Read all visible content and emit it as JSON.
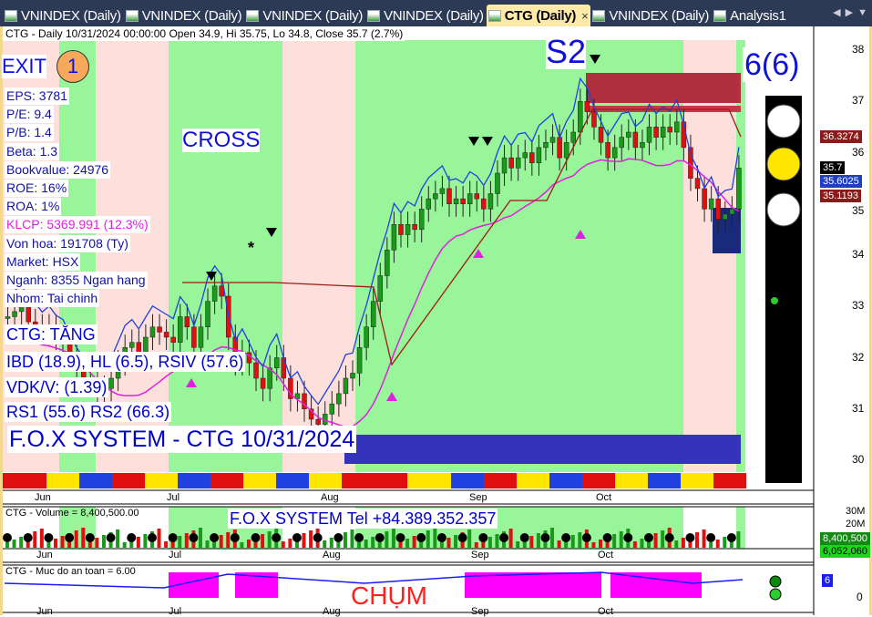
{
  "tabs": [
    {
      "label": "VNINDEX (Daily)",
      "active": false
    },
    {
      "label": "VNINDEX (Daily)",
      "active": false
    },
    {
      "label": "VNINDEX (Daily)",
      "active": false
    },
    {
      "label": "VNINDEX (Daily)",
      "active": false
    },
    {
      "label": "CTG (Daily)",
      "active": true
    },
    {
      "label": "VNINDEX (Daily)",
      "active": false
    },
    {
      "label": "Analysis1",
      "active": false
    }
  ],
  "tab_close": "×",
  "nav": "◀ ▶ ▼",
  "header": "CTG - Daily 10/31/2024 00:00:00 Open 34.9, Hi 35.75, Lo 34.8, Close 35.7 (2.7%)",
  "signal": {
    "exit": "EXIT",
    "exit_num": "1",
    "s2": "S2",
    "score": "6(6)",
    "cross": "CROSS",
    "star": "*"
  },
  "fundamentals": [
    "EPS: 3781",
    "P/E: 9.4",
    "P/B: 1.4",
    "Beta: 1.3",
    "Bookvalue: 24976",
    "ROE: 16%",
    "ROA: 1%",
    "KLCP: 5369.991 (12.3%)",
    "Von hoa: 191708 (Ty)",
    "Market: HSX",
    "Nganh: 8355 Ngan hang",
    "Nhom: Tai chinh"
  ],
  "status": {
    "trend": "CTG: TĂNG",
    "ibd": "IBD (18.9), HL (6.5), RSIV (57.6)",
    "vdk": "VDK/V:  (1.39)",
    "rs": "RS1 (55.6) RS2 (66.3)"
  },
  "footer_title": "F.O.X SYSTEM - CTG 10/31/2024",
  "price_axis": [
    "38",
    "37",
    "36",
    "35",
    "34",
    "33",
    "32",
    "31",
    "30"
  ],
  "price_tags": [
    {
      "label": "36.3274",
      "color": "#8b1a1a"
    },
    {
      "label": "35.7",
      "color": "#000000"
    },
    {
      "label": "35.6025",
      "color": "#1f3fbf"
    },
    {
      "label": "35.1193",
      "color": "#8b1a1a"
    }
  ],
  "date_axis": [
    "Jun",
    "Jul",
    "Aug",
    "Sep",
    "Oct"
  ],
  "volume": {
    "label": "CTG - Volume = 8,400,500.00",
    "banner": "F.O.X SYSTEM Tel +84.389.352.357",
    "axis": [
      "30M",
      "20M"
    ],
    "tag1": "8,400,500",
    "tag2": "6,052,060"
  },
  "safety": {
    "label": "CTG - Muc do an toan = 6.00",
    "overlay": "CHỤM",
    "tag": "6",
    "axis": "0"
  },
  "colors": {
    "up": "#1a9a1a",
    "down": "#e01010",
    "green_zone": "#99f59a",
    "pink_zone": "#fde0dc",
    "light": "#ffe600"
  },
  "chart_data": {
    "type": "candlestick",
    "ylim": [
      29.8,
      38.3
    ],
    "closes": [
      32.8,
      32.9,
      33.0,
      32.7,
      32.6,
      32.5,
      32.6,
      32.4,
      32.3,
      32.0,
      31.8,
      31.6,
      31.5,
      31.3,
      31.4,
      31.6,
      31.9,
      32.2,
      32.3,
      32.1,
      32.4,
      32.6,
      32.5,
      32.4,
      32.3,
      32.8,
      32.6,
      32.2,
      32.6,
      33.1,
      33.4,
      33.2,
      32.4,
      31.9,
      32.1,
      31.9,
      31.6,
      31.4,
      31.8,
      32.0,
      31.6,
      31.2,
      31.3,
      31.0,
      30.8,
      30.7,
      30.9,
      31.1,
      31.3,
      31.6,
      31.7,
      32.2,
      32.6,
      33.1,
      33.6,
      34.1,
      34.6,
      34.4,
      34.6,
      34.5,
      34.9,
      35.1,
      35.2,
      35.3,
      35.0,
      35.1,
      35.0,
      35.2,
      35.1,
      34.9,
      35.2,
      35.6,
      35.9,
      35.7,
      35.9,
      36.0,
      35.8,
      36.1,
      36.2,
      36.3,
      35.9,
      36.2,
      36.4,
      37.0,
      36.8,
      36.5,
      36.2,
      35.9,
      36.1,
      36.3,
      36.4,
      36.1,
      36.2,
      36.5,
      36.3,
      36.5,
      36.4,
      36.6,
      36.1,
      35.5,
      35.3,
      34.9,
      35.1,
      34.7,
      34.8,
      34.9,
      35.7
    ]
  }
}
